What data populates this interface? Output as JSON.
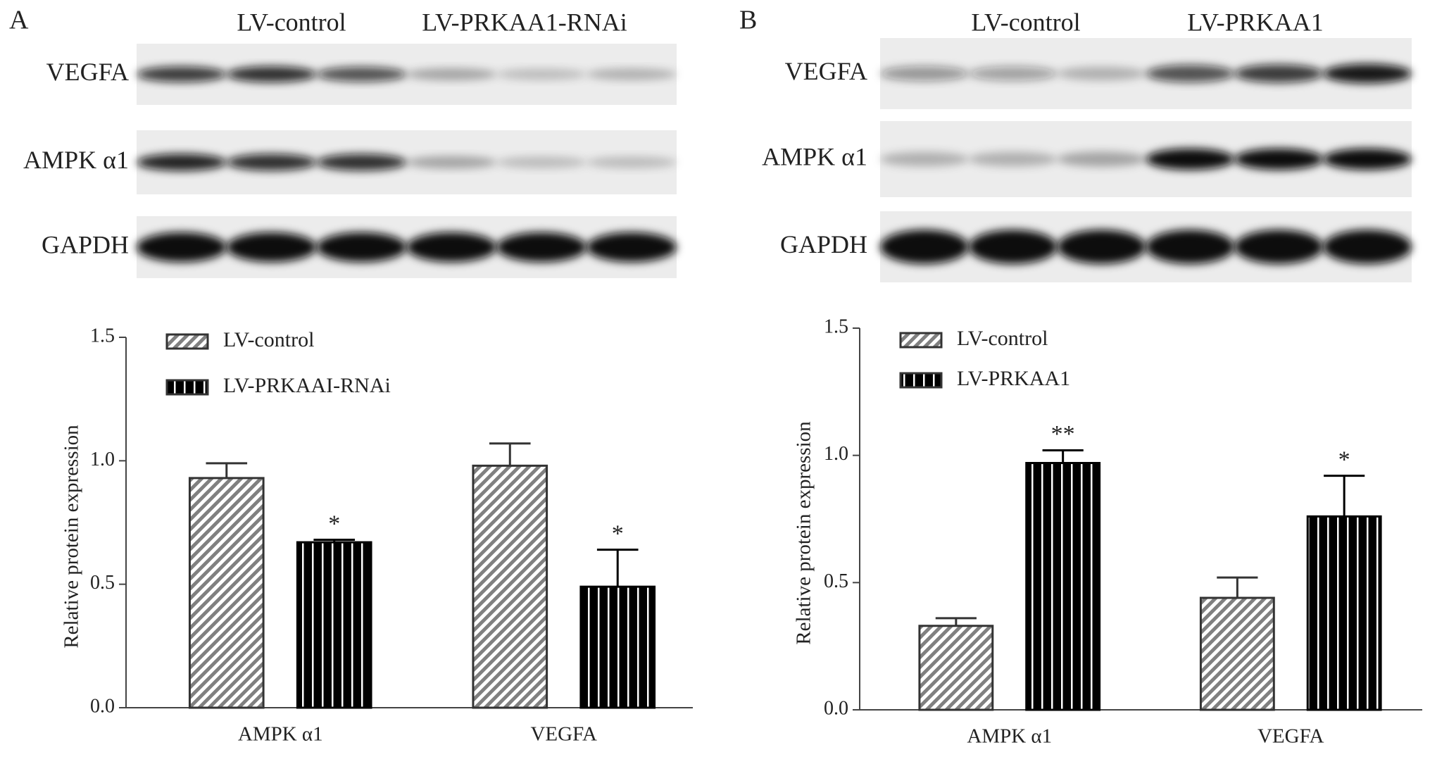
{
  "panels": [
    {
      "label": "A",
      "groups": [
        "LV-control",
        "LV-PRKAA1-RNAi"
      ],
      "rows": [
        "VEGFA",
        "AMPK α1",
        "GAPDH"
      ]
    },
    {
      "label": "B",
      "groups": [
        "LV-control",
        "LV-PRKAA1"
      ],
      "rows": [
        "VEGFA",
        "AMPK α1",
        "GAPDH"
      ]
    }
  ],
  "chart_data": [
    {
      "type": "bar",
      "y_label": "Relative protein expression",
      "categories": [
        "AMPK α1",
        "VEGFA"
      ],
      "series": [
        {
          "name": "LV-control",
          "color": "#808080",
          "pattern": "diagonal",
          "values": [
            0.93,
            0.98
          ],
          "errors": [
            0.06,
            0.09
          ]
        },
        {
          "name": "LV-PRKAAI-RNAi",
          "color": "#000000",
          "pattern": "vertical",
          "values": [
            0.67,
            0.49
          ],
          "errors": [
            0.01,
            0.15
          ],
          "annotations": [
            "*",
            "*"
          ]
        }
      ],
      "ylim": [
        0,
        1.5
      ],
      "yticks": [
        {
          "value": 0,
          "label": "0.0"
        },
        {
          "value": 0.5,
          "label": "0.5"
        },
        {
          "value": 1,
          "label": "1.0"
        },
        {
          "value": 1.5,
          "label": "1.5"
        }
      ]
    },
    {
      "type": "bar",
      "y_label": "Relative protein expression",
      "categories": [
        "AMPK α1",
        "VEGFA"
      ],
      "series": [
        {
          "name": "LV-control",
          "color": "#808080",
          "pattern": "diagonal",
          "values": [
            0.33,
            0.44
          ],
          "errors": [
            0.03,
            0.08
          ]
        },
        {
          "name": "LV-PRKAA1",
          "color": "#000000",
          "pattern": "vertical",
          "values": [
            0.97,
            0.76
          ],
          "errors": [
            0.05,
            0.16
          ],
          "annotations": [
            "**",
            "*"
          ]
        }
      ],
      "ylim": [
        0,
        1.5
      ],
      "yticks": [
        {
          "value": 0,
          "label": "0.0"
        },
        {
          "value": 0.5,
          "label": "0.5"
        },
        {
          "value": 1,
          "label": "1.0"
        },
        {
          "value": 1.5,
          "label": "1.5"
        }
      ]
    }
  ]
}
